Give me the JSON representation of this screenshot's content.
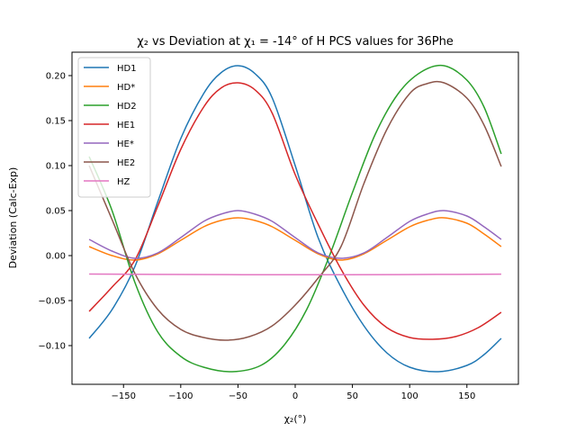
{
  "chart_data": {
    "type": "line",
    "title": "χ₂ vs Deviation at χ₁ = -14° of H PCS values for 36Phe",
    "xlabel": "χ₂(°)",
    "ylabel": "Deviation (Calc-Exp)",
    "xlim": [
      -195,
      195
    ],
    "ylim": [
      -0.143,
      0.226
    ],
    "xticks": [
      -150,
      -100,
      -50,
      0,
      50,
      100,
      150
    ],
    "yticks": [
      -0.1,
      -0.05,
      0.0,
      0.05,
      0.1,
      0.15,
      0.2
    ],
    "xtick_labels": [
      "−150",
      "−100",
      "−50",
      "0",
      "50",
      "100",
      "150"
    ],
    "ytick_labels": [
      "−0.10",
      "−0.05",
      "0.00",
      "0.05",
      "0.10",
      "0.15",
      "0.20"
    ],
    "grid": false,
    "legend": "top-left",
    "series": [
      {
        "name": "HD1",
        "color": "#1f77b4",
        "points": [
          [
            -180,
            -0.092
          ],
          [
            -160,
            -0.06
          ],
          [
            -140,
            -0.012
          ],
          [
            -120,
            0.06
          ],
          [
            -100,
            0.13
          ],
          [
            -80,
            0.18
          ],
          [
            -65,
            0.203
          ],
          [
            -50,
            0.211
          ],
          [
            -35,
            0.202
          ],
          [
            -20,
            0.175
          ],
          [
            0,
            0.1
          ],
          [
            20,
            0.02
          ],
          [
            40,
            -0.035
          ],
          [
            60,
            -0.078
          ],
          [
            80,
            -0.108
          ],
          [
            100,
            -0.124
          ],
          [
            125,
            -0.129
          ],
          [
            150,
            -0.122
          ],
          [
            165,
            -0.11
          ],
          [
            180,
            -0.092
          ]
        ]
      },
      {
        "name": "HD*",
        "color": "#ff7f0e",
        "points": [
          [
            -180,
            0.01
          ],
          [
            -160,
            0.0
          ],
          [
            -140,
            -0.005
          ],
          [
            -120,
            0.002
          ],
          [
            -100,
            0.017
          ],
          [
            -80,
            0.032
          ],
          [
            -65,
            0.039
          ],
          [
            -50,
            0.042
          ],
          [
            -35,
            0.039
          ],
          [
            -20,
            0.032
          ],
          [
            0,
            0.017
          ],
          [
            20,
            0.002
          ],
          [
            40,
            -0.005
          ],
          [
            60,
            0.002
          ],
          [
            80,
            0.017
          ],
          [
            100,
            0.032
          ],
          [
            115,
            0.039
          ],
          [
            130,
            0.042
          ],
          [
            150,
            0.036
          ],
          [
            165,
            0.024
          ],
          [
            180,
            0.01
          ]
        ]
      },
      {
        "name": "HD2",
        "color": "#2ca02c",
        "points": [
          [
            -180,
            0.11
          ],
          [
            -160,
            0.05
          ],
          [
            -140,
            -0.03
          ],
          [
            -120,
            -0.085
          ],
          [
            -100,
            -0.112
          ],
          [
            -80,
            -0.124
          ],
          [
            -55,
            -0.129
          ],
          [
            -30,
            -0.122
          ],
          [
            -10,
            -0.1
          ],
          [
            10,
            -0.06
          ],
          [
            30,
            0.0
          ],
          [
            50,
            0.07
          ],
          [
            70,
            0.135
          ],
          [
            90,
            0.18
          ],
          [
            110,
            0.204
          ],
          [
            130,
            0.211
          ],
          [
            150,
            0.195
          ],
          [
            165,
            0.165
          ],
          [
            180,
            0.113
          ]
        ]
      },
      {
        "name": "HE1",
        "color": "#d62728",
        "points": [
          [
            -180,
            -0.062
          ],
          [
            -160,
            -0.035
          ],
          [
            -140,
            -0.005
          ],
          [
            -120,
            0.055
          ],
          [
            -100,
            0.118
          ],
          [
            -80,
            0.165
          ],
          [
            -65,
            0.186
          ],
          [
            -50,
            0.192
          ],
          [
            -35,
            0.184
          ],
          [
            -20,
            0.158
          ],
          [
            0,
            0.09
          ],
          [
            20,
            0.035
          ],
          [
            40,
            -0.015
          ],
          [
            60,
            -0.055
          ],
          [
            80,
            -0.08
          ],
          [
            100,
            -0.091
          ],
          [
            120,
            -0.093
          ],
          [
            140,
            -0.09
          ],
          [
            160,
            -0.08
          ],
          [
            180,
            -0.063
          ]
        ]
      },
      {
        "name": "HE*",
        "color": "#9467bd",
        "points": [
          [
            -180,
            0.018
          ],
          [
            -160,
            0.005
          ],
          [
            -140,
            -0.003
          ],
          [
            -120,
            0.003
          ],
          [
            -100,
            0.02
          ],
          [
            -80,
            0.038
          ],
          [
            -65,
            0.046
          ],
          [
            -50,
            0.05
          ],
          [
            -35,
            0.046
          ],
          [
            -20,
            0.038
          ],
          [
            0,
            0.02
          ],
          [
            20,
            0.003
          ],
          [
            40,
            -0.003
          ],
          [
            60,
            0.003
          ],
          [
            80,
            0.02
          ],
          [
            100,
            0.038
          ],
          [
            115,
            0.046
          ],
          [
            130,
            0.05
          ],
          [
            150,
            0.044
          ],
          [
            165,
            0.032
          ],
          [
            180,
            0.018
          ]
        ]
      },
      {
        "name": "HE2",
        "color": "#8c564b",
        "points": [
          [
            -180,
            0.1
          ],
          [
            -160,
            0.04
          ],
          [
            -140,
            -0.02
          ],
          [
            -120,
            -0.06
          ],
          [
            -100,
            -0.082
          ],
          [
            -80,
            -0.091
          ],
          [
            -60,
            -0.094
          ],
          [
            -40,
            -0.09
          ],
          [
            -20,
            -0.078
          ],
          [
            0,
            -0.055
          ],
          [
            20,
            -0.025
          ],
          [
            40,
            0.01
          ],
          [
            60,
            0.08
          ],
          [
            80,
            0.14
          ],
          [
            100,
            0.18
          ],
          [
            115,
            0.191
          ],
          [
            130,
            0.192
          ],
          [
            150,
            0.175
          ],
          [
            165,
            0.145
          ],
          [
            180,
            0.099
          ]
        ]
      },
      {
        "name": "HZ",
        "color": "#e377c2",
        "points": [
          [
            -180,
            -0.0205
          ],
          [
            -90,
            -0.021
          ],
          [
            0,
            -0.0213
          ],
          [
            90,
            -0.0211
          ],
          [
            180,
            -0.0206
          ]
        ]
      }
    ]
  }
}
